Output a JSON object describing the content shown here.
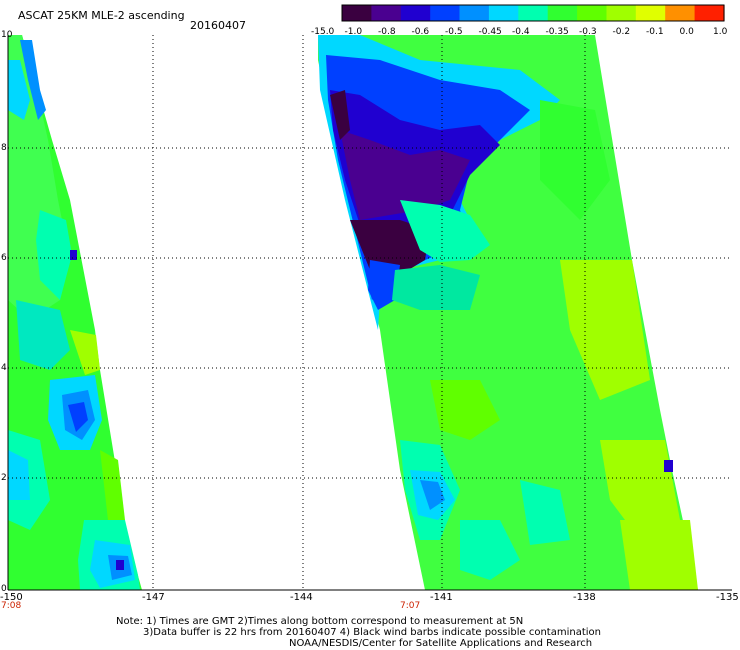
{
  "title": "ASCAT 25KM MLE-2 ascending",
  "date": "20160407",
  "colorbar": {
    "labels": [
      "-15.0",
      "-1.0",
      "-0.8",
      "-0.6",
      "-0.5",
      "-0.45",
      "-0.4",
      "-0.35",
      "-0.3",
      "-0.2",
      "-0.1",
      "0.0",
      "1.0"
    ],
    "colors": [
      "#3a0040",
      "#4a0090",
      "#2000d0",
      "#0040ff",
      "#0090ff",
      "#00d8ff",
      "#00ffb0",
      "#30ff30",
      "#60ff00",
      "#a0ff00",
      "#e0ff00",
      "#ff9000",
      "#ff2000"
    ]
  },
  "axes": {
    "x_ticks": [
      "-150",
      "-147",
      "-144",
      "-141",
      "-138",
      "-135"
    ],
    "y_ticks": [
      "0",
      "2",
      "4",
      "6",
      "8",
      "10"
    ]
  },
  "times": [
    "7:08",
    "7:07"
  ],
  "notes": [
    "Note: 1) Times are GMT 2)Times along bottom correspond to measurement at 5N",
    "3)Data buffer is 22 hrs from 20160407 4) Black wind barbs indicate possible contamination",
    "NOAA/NESDIS/Center for Satellite Applications and Research"
  ]
}
